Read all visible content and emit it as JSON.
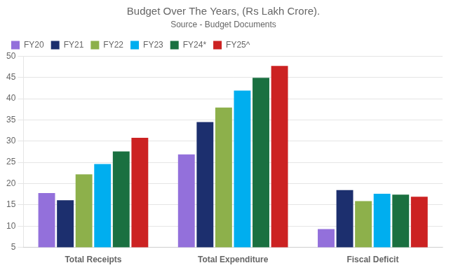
{
  "chart_data": {
    "type": "bar",
    "title": "Budget Over The Years, (Rs Lakh Crore).",
    "subtitle": "Source - Budget Documents",
    "categories": [
      "Total Receipts",
      "Total Expenditure",
      "Fiscal Deficit"
    ],
    "series": [
      {
        "name": "FY20",
        "color": "#9370DB",
        "values": [
          17.8,
          26.9,
          9.3
        ]
      },
      {
        "name": "FY21",
        "color": "#1C2F6E",
        "values": [
          16.1,
          34.5,
          18.5
        ]
      },
      {
        "name": "FY22",
        "color": "#8DB04B",
        "values": [
          22.2,
          37.9,
          15.9
        ]
      },
      {
        "name": "FY23",
        "color": "#00AEEF",
        "values": [
          24.6,
          41.9,
          17.6
        ]
      },
      {
        "name": "FY24*",
        "color": "#1A7040",
        "values": [
          27.6,
          44.9,
          17.4
        ]
      },
      {
        "name": "FY25^",
        "color": "#CC2222",
        "values": [
          30.8,
          47.7,
          16.9
        ]
      }
    ],
    "ylim": [
      5,
      50
    ],
    "yticks": [
      5,
      10,
      15,
      20,
      25,
      30,
      35,
      40,
      45,
      50
    ],
    "grid": true,
    "legend": "upper left"
  }
}
